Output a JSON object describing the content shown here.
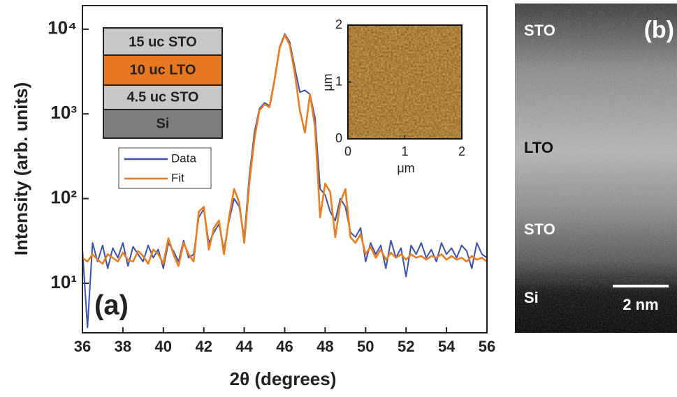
{
  "chart_data": {
    "type": "line",
    "xlabel": "2θ (degrees)",
    "ylabel": "Intensity (arb. units)",
    "panel_label": "(a)",
    "yscale": "log",
    "xlim": [
      36,
      56
    ],
    "ylim": [
      2.6,
      19000
    ],
    "xticks": [
      36,
      38,
      40,
      42,
      44,
      46,
      48,
      50,
      52,
      54,
      56
    ],
    "yticks": [
      {
        "value": 10,
        "label": "10¹"
      },
      {
        "value": 100,
        "label": "10²"
      },
      {
        "value": 1000,
        "label": "10³"
      },
      {
        "value": 10000,
        "label": "10⁴"
      }
    ],
    "x": [
      36,
      36.25,
      36.5,
      36.75,
      37,
      37.25,
      37.5,
      37.75,
      38,
      38.25,
      38.5,
      38.75,
      39,
      39.25,
      39.5,
      39.75,
      40,
      40.25,
      40.5,
      40.75,
      41,
      41.25,
      41.5,
      41.75,
      42,
      42.25,
      42.5,
      42.75,
      43,
      43.25,
      43.5,
      43.75,
      44,
      44.25,
      44.5,
      44.75,
      45,
      45.25,
      45.5,
      45.75,
      46,
      46.25,
      46.5,
      46.75,
      47,
      47.25,
      47.5,
      47.75,
      48,
      48.25,
      48.5,
      48.75,
      49,
      49.25,
      49.5,
      49.75,
      50,
      50.25,
      50.5,
      50.75,
      51,
      51.25,
      51.5,
      51.75,
      52,
      52.25,
      52.5,
      52.75,
      53,
      53.25,
      53.5,
      53.75,
      54,
      54.25,
      54.5,
      54.75,
      55,
      55.25,
      55.5,
      55.75,
      56
    ],
    "series": [
      {
        "name": "Data",
        "color": "#3f51a8",
        "values": [
          25,
          3,
          30,
          18,
          28,
          15,
          26,
          20,
          30,
          16,
          27,
          22,
          18,
          28,
          20,
          25,
          15,
          30,
          24,
          18,
          32,
          20,
          22,
          60,
          75,
          30,
          40,
          50,
          25,
          55,
          100,
          80,
          35,
          180,
          600,
          1150,
          1350,
          1250,
          2600,
          6200,
          8800,
          7000,
          3500,
          1800,
          1900,
          1700,
          900,
          130,
          110,
          70,
          55,
          100,
          80,
          40,
          35,
          45,
          18,
          30,
          22,
          28,
          15,
          32,
          20,
          26,
          12,
          28,
          22,
          30,
          20,
          25,
          18,
          30,
          22,
          26,
          20,
          28,
          24,
          15,
          30,
          22,
          20
        ]
      },
      {
        "name": "Fit",
        "color": "#e87e22",
        "values": [
          20,
          18,
          22,
          19,
          17,
          22,
          20,
          18,
          23,
          19,
          18,
          24,
          21,
          17,
          25,
          22,
          17,
          34,
          22,
          16,
          30,
          22,
          18,
          70,
          80,
          25,
          45,
          55,
          22,
          60,
          130,
          90,
          30,
          150,
          500,
          1100,
          1300,
          1200,
          2500,
          6000,
          8500,
          6500,
          3000,
          1100,
          600,
          1700,
          700,
          60,
          150,
          120,
          35,
          90,
          130,
          35,
          30,
          38,
          22,
          27,
          20,
          25,
          19,
          23,
          20,
          22,
          19,
          22,
          20,
          21,
          19,
          21,
          20,
          22,
          19,
          21,
          19,
          20,
          18,
          21,
          19,
          20,
          18
        ]
      }
    ]
  },
  "layer_stack": [
    "15 uc STO",
    "10 uc LTO",
    "4.5 uc STO",
    "Si"
  ],
  "inset": {
    "xticks": [
      0,
      1,
      2
    ],
    "yticks": [
      0,
      1,
      2
    ],
    "xlim": [
      0,
      2
    ],
    "ylim": [
      0,
      2
    ],
    "xlabel": "μm",
    "ylabel": "μm"
  },
  "tem_image": {
    "panel_label": "(b)",
    "labels": [
      "STO",
      "LTO",
      "STO",
      "Si"
    ],
    "scale_bar": "2 nm"
  }
}
